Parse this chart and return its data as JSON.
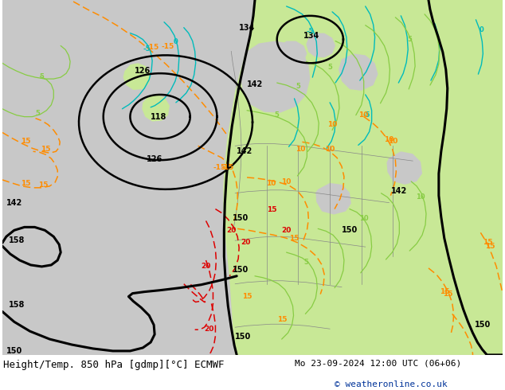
{
  "title": "Height/Temp. 850 hPa [gdmp][°C] ECMWF",
  "date_label": "Mo 23-09-2024 12:00 UTC (06+06)",
  "copyright": "© weatheronline.co.uk",
  "fig_width": 6.34,
  "fig_height": 4.9,
  "dpi": 100,
  "title_fontsize": 9,
  "label_fontsize": 8,
  "copyright_color": "#003399",
  "gray_bg": "#c8c8c8",
  "green_fill": "#c8e896",
  "orange_color": "#ff8c00",
  "red_color": "#dd0000",
  "cyan_color": "#00bbbb",
  "green_line_color": "#88cc44",
  "black_line_color": "#000000",
  "gray_line_color": "#888888"
}
